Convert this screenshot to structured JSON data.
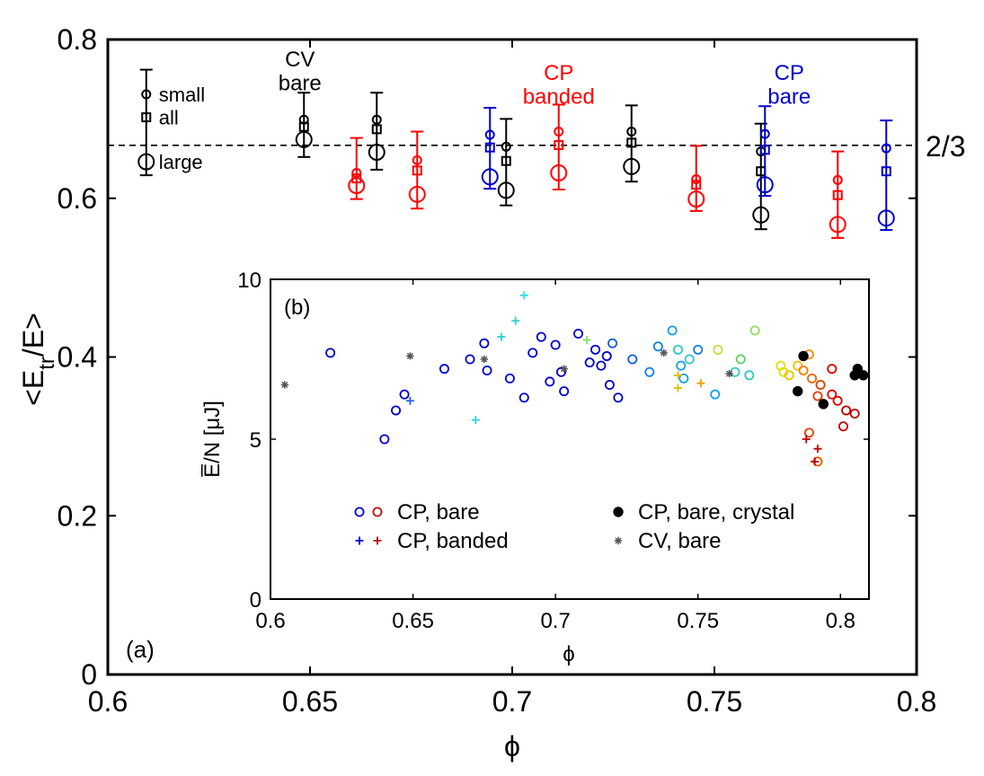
{
  "chart_data": [
    {
      "panel": "(a)",
      "type": "scatter",
      "xlabel": "ϕ",
      "ylabel_main": "<E",
      "ylabel_sub": "tr",
      "ylabel_tail": "/E>",
      "xlim": [
        0.6,
        0.8
      ],
      "ylim": [
        0,
        0.8
      ],
      "xticks": [
        "0.6",
        "0.65",
        "0.7",
        "0.75",
        "0.8"
      ],
      "yticks": [
        "0",
        "0.2",
        "0.4",
        "0.6",
        "0.8"
      ],
      "reference_line": {
        "y": 0.6667,
        "label": "2/3",
        "style": "dashed"
      },
      "legend": [
        {
          "label": "small",
          "marker": "circle-small"
        },
        {
          "label": "all",
          "marker": "square"
        },
        {
          "label": "large",
          "marker": "circle-large"
        }
      ],
      "legend_values": {
        "x": 0.6095,
        "small": 0.731,
        "all": 0.702,
        "large": 0.646,
        "err_top": 0.762,
        "err_bottom": 0.629
      },
      "annotations": [
        {
          "lines": [
            "CV",
            "bare"
          ],
          "color": "#000000",
          "x": 0.6475,
          "y": [
            0.775,
            0.745
          ]
        },
        {
          "lines": [
            "CP",
            "banded"
          ],
          "color": "#ff0000",
          "x": 0.7115,
          "y": [
            0.758,
            0.728
          ]
        },
        {
          "lines": [
            "CP",
            "bare"
          ],
          "color": "#0000cc",
          "x": 0.7685,
          "y": [
            0.758,
            0.728
          ]
        }
      ],
      "series": [
        {
          "name": "CV, bare",
          "color": "#000000",
          "points": [
            {
              "x": 0.6485,
              "small": 0.699,
              "all": 0.69,
              "large": 0.674,
              "err": [
                0.652,
                0.733
              ]
            },
            {
              "x": 0.6665,
              "small": 0.699,
              "all": 0.687,
              "large": 0.658,
              "err": [
                0.636,
                0.733
              ]
            },
            {
              "x": 0.6985,
              "small": 0.665,
              "all": 0.647,
              "large": 0.61,
              "err": [
                0.591,
                0.7
              ]
            },
            {
              "x": 0.7295,
              "small": 0.684,
              "all": 0.67,
              "large": 0.64,
              "err": [
                0.621,
                0.717
              ]
            },
            {
              "x": 0.7615,
              "small": 0.659,
              "all": 0.634,
              "large": 0.579,
              "err": [
                0.561,
                0.694
              ]
            }
          ]
        },
        {
          "name": "CP, banded",
          "color": "#ff0000",
          "points": [
            {
              "x": 0.6615,
              "small": 0.632,
              "all": 0.625,
              "large": 0.616,
              "err": [
                0.599,
                0.676
              ]
            },
            {
              "x": 0.6765,
              "small": 0.648,
              "all": 0.635,
              "large": 0.605,
              "err": [
                0.587,
                0.684
              ]
            },
            {
              "x": 0.7115,
              "small": 0.684,
              "all": 0.667,
              "large": 0.632,
              "err": [
                0.611,
                0.718
              ]
            },
            {
              "x": 0.7455,
              "small": 0.624,
              "all": 0.617,
              "large": 0.599,
              "err": [
                0.584,
                0.666
              ]
            },
            {
              "x": 0.7805,
              "small": 0.623,
              "all": 0.604,
              "large": 0.567,
              "err": [
                0.55,
                0.659
              ]
            }
          ]
        },
        {
          "name": "CP, bare",
          "color": "#0000cc",
          "points": [
            {
              "x": 0.6945,
              "small": 0.68,
              "all": 0.664,
              "large": 0.627,
              "err": [
                0.612,
                0.714
              ]
            },
            {
              "x": 0.7625,
              "small": 0.681,
              "all": 0.661,
              "large": 0.617,
              "err": [
                0.603,
                0.716
              ]
            },
            {
              "x": 0.7925,
              "small": 0.663,
              "all": 0.634,
              "large": 0.575,
              "err": [
                0.56,
                0.698
              ]
            }
          ]
        }
      ]
    },
    {
      "panel": "(b)",
      "type": "scatter",
      "ylabel": "E̅/N [μJ]",
      "xlabel": "ϕ",
      "xlim": [
        0.6,
        0.81
      ],
      "ylim": [
        0,
        10
      ],
      "xticks": [
        "0.6",
        "0.65",
        "0.7",
        "0.75",
        "0.8"
      ],
      "yticks": [
        "0",
        "5",
        "10"
      ],
      "legend_location": "lower-center",
      "legend": [
        {
          "label": "CP, bare",
          "marker": "circle-open",
          "colors": [
            "#0000cc",
            "#b01010"
          ]
        },
        {
          "label": "CP, bare, crystal",
          "marker": "circle-filled",
          "colors": [
            "#000000"
          ]
        },
        {
          "label": "CP, banded",
          "marker": "plus",
          "colors": [
            "#0000cc",
            "#b01010"
          ]
        },
        {
          "label": "CV, bare",
          "marker": "star",
          "colors": [
            "#555555"
          ]
        }
      ],
      "series": [
        {
          "name": "CP, bare",
          "marker": "circle-open",
          "points": [
            {
              "x": 0.621,
              "y": 7.7,
              "c": "#0000cc"
            },
            {
              "x": 0.64,
              "y": 5.0,
              "c": "#0000cc"
            },
            {
              "x": 0.644,
              "y": 5.9,
              "c": "#0000cc"
            },
            {
              "x": 0.647,
              "y": 6.4,
              "c": "#0000cc"
            },
            {
              "x": 0.661,
              "y": 7.2,
              "c": "#0000cc"
            },
            {
              "x": 0.67,
              "y": 7.5,
              "c": "#0000cc"
            },
            {
              "x": 0.676,
              "y": 7.15,
              "c": "#0000cc"
            },
            {
              "x": 0.684,
              "y": 6.9,
              "c": "#0000cc"
            },
            {
              "x": 0.692,
              "y": 7.7,
              "c": "#0000cc"
            },
            {
              "x": 0.698,
              "y": 6.8,
              "c": "#0000cc"
            },
            {
              "x": 0.689,
              "y": 6.3,
              "c": "#0000cc"
            },
            {
              "x": 0.675,
              "y": 8.0,
              "c": "#0000cc"
            },
            {
              "x": 0.695,
              "y": 8.2,
              "c": "#0000cc"
            },
            {
              "x": 0.7,
              "y": 7.95,
              "c": "#0000cc"
            },
            {
              "x": 0.708,
              "y": 8.3,
              "c": "#0000cc"
            },
            {
              "x": 0.702,
              "y": 7.1,
              "c": "#0000cc"
            },
            {
              "x": 0.703,
              "y": 6.5,
              "c": "#0000cc"
            },
            {
              "x": 0.712,
              "y": 7.4,
              "c": "#0000cc"
            },
            {
              "x": 0.714,
              "y": 7.8,
              "c": "#0000cc"
            },
            {
              "x": 0.716,
              "y": 7.3,
              "c": "#0000cc"
            },
            {
              "x": 0.718,
              "y": 7.6,
              "c": "#0000cc"
            },
            {
              "x": 0.719,
              "y": 6.7,
              "c": "#0000cc"
            },
            {
              "x": 0.722,
              "y": 6.3,
              "c": "#0000cc"
            },
            {
              "x": 0.72,
              "y": 8.0,
              "c": "#1060d0"
            },
            {
              "x": 0.727,
              "y": 7.5,
              "c": "#1060d0"
            },
            {
              "x": 0.733,
              "y": 7.1,
              "c": "#1080e0"
            },
            {
              "x": 0.736,
              "y": 7.9,
              "c": "#1080e0"
            },
            {
              "x": 0.741,
              "y": 8.4,
              "c": "#10a0f0"
            },
            {
              "x": 0.744,
              "y": 7.3,
              "c": "#10a0f0"
            },
            {
              "x": 0.745,
              "y": 6.9,
              "c": "#10a0f0"
            },
            {
              "x": 0.743,
              "y": 7.8,
              "c": "#30c8c8"
            },
            {
              "x": 0.747,
              "y": 7.5,
              "c": "#30c8c8"
            },
            {
              "x": 0.75,
              "y": 7.8,
              "c": "#1080e0"
            },
            {
              "x": 0.756,
              "y": 6.4,
              "c": "#10a0f0"
            },
            {
              "x": 0.763,
              "y": 7.1,
              "c": "#30c8c8"
            },
            {
              "x": 0.768,
              "y": 7.0,
              "c": "#30c8c8"
            },
            {
              "x": 0.765,
              "y": 7.5,
              "c": "#60d060"
            },
            {
              "x": 0.77,
              "y": 8.4,
              "c": "#90e060"
            },
            {
              "x": 0.757,
              "y": 7.8,
              "c": "#c0e040"
            },
            {
              "x": 0.779,
              "y": 7.3,
              "c": "#e0e000"
            },
            {
              "x": 0.78,
              "y": 7.1,
              "c": "#e0e000"
            },
            {
              "x": 0.782,
              "y": 7.0,
              "c": "#f0c000"
            },
            {
              "x": 0.785,
              "y": 7.3,
              "c": "#f0c000"
            },
            {
              "x": 0.789,
              "y": 7.65,
              "c": "#f09000"
            },
            {
              "x": 0.787,
              "y": 7.15,
              "c": "#f08000"
            },
            {
              "x": 0.79,
              "y": 6.9,
              "c": "#f06000"
            },
            {
              "x": 0.793,
              "y": 6.7,
              "c": "#e04000"
            },
            {
              "x": 0.792,
              "y": 6.35,
              "c": "#e04000"
            },
            {
              "x": 0.789,
              "y": 5.2,
              "c": "#e04000"
            },
            {
              "x": 0.792,
              "y": 4.3,
              "c": "#e06000"
            },
            {
              "x": 0.797,
              "y": 7.2,
              "c": "#e00000"
            },
            {
              "x": 0.797,
              "y": 6.4,
              "c": "#e00000"
            },
            {
              "x": 0.799,
              "y": 6.2,
              "c": "#e00000"
            },
            {
              "x": 0.802,
              "y": 5.9,
              "c": "#c00000"
            },
            {
              "x": 0.805,
              "y": 5.8,
              "c": "#c00000"
            },
            {
              "x": 0.801,
              "y": 5.4,
              "c": "#c00000"
            }
          ]
        },
        {
          "name": "CP, bare, crystal",
          "marker": "circle-filled",
          "points": [
            {
              "x": 0.787,
              "y": 7.6,
              "c": "#000000"
            },
            {
              "x": 0.785,
              "y": 6.5,
              "c": "#000000"
            },
            {
              "x": 0.794,
              "y": 6.1,
              "c": "#000000"
            },
            {
              "x": 0.805,
              "y": 7.0,
              "c": "#000000"
            },
            {
              "x": 0.806,
              "y": 7.2,
              "c": "#000000"
            },
            {
              "x": 0.808,
              "y": 7.0,
              "c": "#000000"
            }
          ]
        },
        {
          "name": "CP, banded",
          "marker": "plus",
          "points": [
            {
              "x": 0.649,
              "y": 6.2,
              "c": "#2060e0"
            },
            {
              "x": 0.672,
              "y": 5.6,
              "c": "#30d0d0"
            },
            {
              "x": 0.681,
              "y": 8.2,
              "c": "#30d0d0"
            },
            {
              "x": 0.686,
              "y": 8.7,
              "c": "#30d0d0"
            },
            {
              "x": 0.689,
              "y": 9.5,
              "c": "#30e0e0"
            },
            {
              "x": 0.711,
              "y": 8.1,
              "c": "#80e060"
            },
            {
              "x": 0.743,
              "y": 6.6,
              "c": "#e0c000"
            },
            {
              "x": 0.743,
              "y": 7.0,
              "c": "#e0c000"
            },
            {
              "x": 0.751,
              "y": 6.75,
              "c": "#f0a000"
            },
            {
              "x": 0.788,
              "y": 5.0,
              "c": "#c00000"
            },
            {
              "x": 0.792,
              "y": 4.7,
              "c": "#c00000"
            },
            {
              "x": 0.791,
              "y": 4.3,
              "c": "#c00000"
            }
          ]
        },
        {
          "name": "CV, bare",
          "marker": "star",
          "points": [
            {
              "x": 0.605,
              "y": 6.7,
              "c": "#555555"
            },
            {
              "x": 0.649,
              "y": 7.6,
              "c": "#555555"
            },
            {
              "x": 0.675,
              "y": 7.5,
              "c": "#555555"
            },
            {
              "x": 0.703,
              "y": 7.2,
              "c": "#555555"
            },
            {
              "x": 0.738,
              "y": 7.7,
              "c": "#555555"
            },
            {
              "x": 0.761,
              "y": 7.05,
              "c": "#555555"
            }
          ]
        }
      ]
    }
  ]
}
